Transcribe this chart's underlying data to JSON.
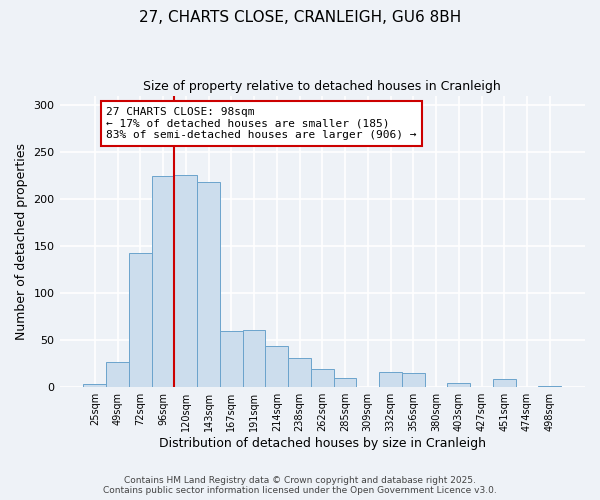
{
  "title": "27, CHARTS CLOSE, CRANLEIGH, GU6 8BH",
  "subtitle": "Size of property relative to detached houses in Cranleigh",
  "xlabel": "Distribution of detached houses by size in Cranleigh",
  "ylabel": "Number of detached properties",
  "bar_labels": [
    "25sqm",
    "49sqm",
    "72sqm",
    "96sqm",
    "120sqm",
    "143sqm",
    "167sqm",
    "191sqm",
    "214sqm",
    "238sqm",
    "262sqm",
    "285sqm",
    "309sqm",
    "332sqm",
    "356sqm",
    "380sqm",
    "403sqm",
    "427sqm",
    "451sqm",
    "474sqm",
    "498sqm"
  ],
  "bar_values": [
    3,
    27,
    143,
    225,
    226,
    218,
    60,
    61,
    44,
    31,
    19,
    10,
    0,
    16,
    15,
    0,
    5,
    0,
    9,
    0,
    1
  ],
  "bar_color": "#ccdded",
  "bar_edge_color": "#6ba3cc",
  "vline_index": 3,
  "vline_color": "#cc0000",
  "annotation_title": "27 CHARTS CLOSE: 98sqm",
  "annotation_line1": "← 17% of detached houses are smaller (185)",
  "annotation_line2": "83% of semi-detached houses are larger (906) →",
  "annotation_box_color": "#cc0000",
  "ylim": [
    0,
    310
  ],
  "yticks": [
    0,
    50,
    100,
    150,
    200,
    250,
    300
  ],
  "background_color": "#eef2f7",
  "grid_color": "#ffffff",
  "footer1": "Contains HM Land Registry data © Crown copyright and database right 2025.",
  "footer2": "Contains public sector information licensed under the Open Government Licence v3.0."
}
